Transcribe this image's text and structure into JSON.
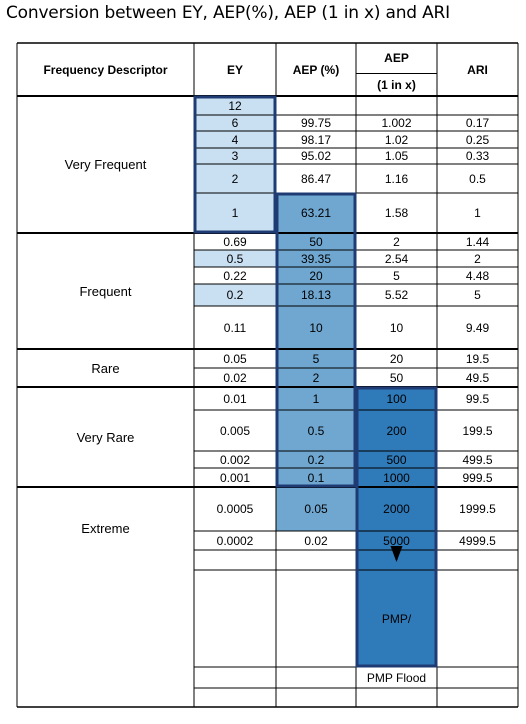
{
  "title": "Conversion between EY, AEP(%), AEP (1 in x) and ARI",
  "headers": {
    "descriptor": "Frequency Descriptor",
    "ey": "EY",
    "aep_pct": "AEP (%)",
    "aep_1inx_top": "AEP",
    "aep_1inx_bottom": "(1 in x)",
    "ari": "ARI"
  },
  "groups": [
    "Very Frequent",
    "Frequent",
    "Rare",
    "Very Rare",
    "Extreme"
  ],
  "rows": [
    {
      "ey": "12",
      "aep_pct": "",
      "aep_1inx": "",
      "ari": ""
    },
    {
      "ey": "6",
      "aep_pct": "99.75",
      "aep_1inx": "1.002",
      "ari": "0.17"
    },
    {
      "ey": "4",
      "aep_pct": "98.17",
      "aep_1inx": "1.02",
      "ari": "0.25"
    },
    {
      "ey": "3",
      "aep_pct": "95.02",
      "aep_1inx": "1.05",
      "ari": "0.33"
    },
    {
      "ey": "2",
      "aep_pct": "86.47",
      "aep_1inx": "1.16",
      "ari": "0.5"
    },
    {
      "ey": "1",
      "aep_pct": "63.21",
      "aep_1inx": "1.58",
      "ari": "1"
    },
    {
      "ey": "0.69",
      "aep_pct": "50",
      "aep_1inx": "2",
      "ari": "1.44"
    },
    {
      "ey": "0.5",
      "aep_pct": "39.35",
      "aep_1inx": "2.54",
      "ari": "2"
    },
    {
      "ey": "0.22",
      "aep_pct": "20",
      "aep_1inx": "5",
      "ari": "4.48"
    },
    {
      "ey": "0.2",
      "aep_pct": "18.13",
      "aep_1inx": "5.52",
      "ari": "5"
    },
    {
      "ey": "0.11",
      "aep_pct": "10",
      "aep_1inx": "10",
      "ari": "9.49"
    },
    {
      "ey": "0.05",
      "aep_pct": "5",
      "aep_1inx": "20",
      "ari": "19.5"
    },
    {
      "ey": "0.02",
      "aep_pct": "2",
      "aep_1inx": "50",
      "ari": "49.5"
    },
    {
      "ey": "0.01",
      "aep_pct": "1",
      "aep_1inx": "100",
      "ari": "99.5"
    },
    {
      "ey": "0.005",
      "aep_pct": "0.5",
      "aep_1inx": "200",
      "ari": "199.5"
    },
    {
      "ey": "0.002",
      "aep_pct": "0.2",
      "aep_1inx": "500",
      "ari": "499.5"
    },
    {
      "ey": "0.001",
      "aep_pct": "0.1",
      "aep_1inx": "1000",
      "ari": "999.5"
    },
    {
      "ey": "0.0005",
      "aep_pct": "0.05",
      "aep_1inx": "2000",
      "ari": "1999.5"
    },
    {
      "ey": "0.0002",
      "aep_pct": "0.02",
      "aep_1inx": "5000",
      "ari": "4999.5"
    },
    {
      "ey": "",
      "aep_pct": "",
      "aep_1inx": "",
      "ari": ""
    },
    {
      "ey": "",
      "aep_pct": "",
      "aep_1inx": "PMP/",
      "ari": ""
    },
    {
      "ey": "",
      "aep_pct": "",
      "aep_1inx": "PMP Flood",
      "ari": ""
    }
  ],
  "colors": {
    "ey_shade": "#c9dff2",
    "aep_pct_shade": "#6fa7d1",
    "aep_1inx_shade": "#2f7ab9",
    "outline": "#1f3b73"
  }
}
